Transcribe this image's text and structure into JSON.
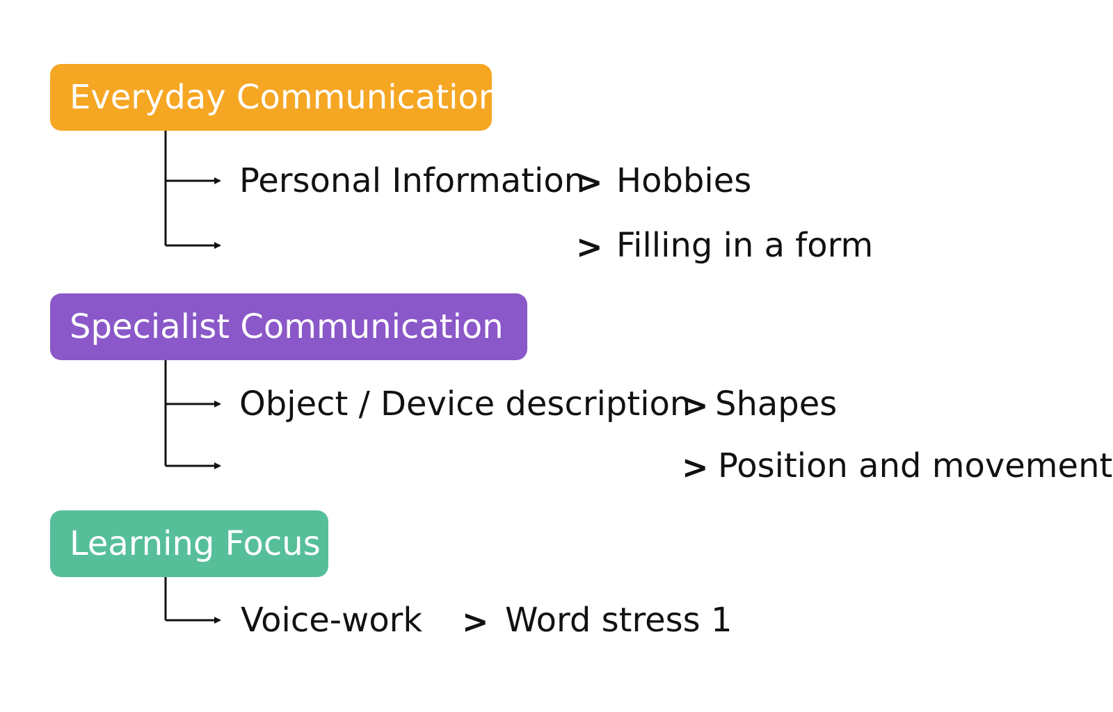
{
  "categories": [
    {
      "title": "Everyday Communication",
      "color": "#F5A623",
      "items": [
        {
          "label": "Personal Information",
          "separator": ">",
          "sub": "Hobbies"
        },
        {
          "label": "",
          "separator": ">",
          "sub": "Filling in a form"
        }
      ]
    },
    {
      "title": "Specialist Communication",
      "color": "#8A58C8",
      "items": [
        {
          "label": "Object / Device description",
          "separator": ">",
          "sub": "Shapes"
        },
        {
          "label": "",
          "separator": ">",
          "sub": "Position and movement"
        }
      ]
    },
    {
      "title": "Learning Focus",
      "color": "#56BF99",
      "items": [
        {
          "label": "Voice-work",
          "separator": ">",
          "sub": "Word stress 1"
        }
      ]
    }
  ]
}
